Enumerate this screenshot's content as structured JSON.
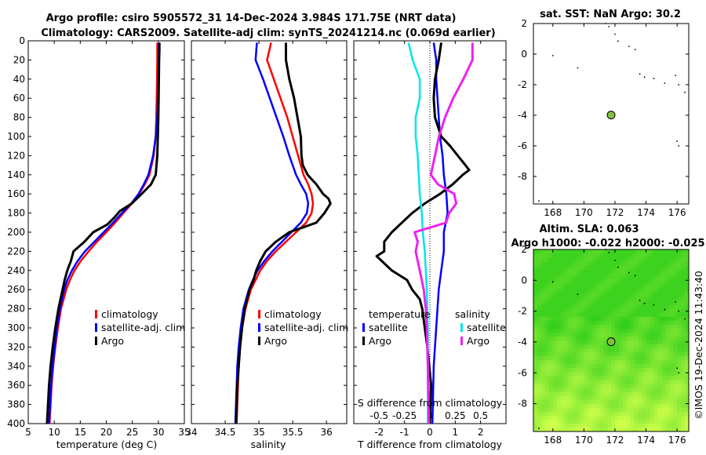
{
  "colors": {
    "clim": "#ff0000",
    "sat": "#0000ff",
    "argo": "#000000",
    "cyan": "#00e5ee",
    "magenta": "#ee22ee",
    "sla_dark": "#2ecc1a",
    "sla_light": "#c8ff4a",
    "marker": "#80c040"
  },
  "titles": {
    "main_line1": "Argo profile: csiro 5905572_31 14-Dec-2024 3.984S 171.75E (NRT data)",
    "main_line2": "Climatology: CARS2009. Satellite-adj clim: synTS_20241214.nc (0.069d earlier)",
    "sst": "sat. SST: NaN Argo: 30.2",
    "sla1": "Altim. SLA: 0.063",
    "sla2": "Argo h1000: -0.022 h2000: -0.025",
    "timestamp": "©IMOS 19-Dec-2024 11:43:40"
  },
  "labels": {
    "temperature": "temperature (deg C)",
    "salinity": "salinity",
    "t_diff": "T difference from climatology",
    "s_diff": "S difference from climatology"
  },
  "legend": {
    "clim": "climatology",
    "sat": "satellite-adj. clim",
    "argo": "Argo",
    "diff_t_head": "temperature",
    "diff_s_head": "salinity",
    "satellite": "satellite",
    "argo2": "Argo"
  },
  "chart_data": [
    {
      "type": "line",
      "name": "temperature",
      "xlim": [
        5,
        35
      ],
      "ylim": [
        400,
        0
      ],
      "x_ticks": [
        5,
        10,
        15,
        20,
        25,
        30,
        35
      ],
      "y_ticks": [
        0,
        20,
        40,
        60,
        80,
        100,
        120,
        140,
        160,
        180,
        200,
        220,
        240,
        260,
        280,
        300,
        320,
        340,
        360,
        380,
        400
      ],
      "series": [
        {
          "name": "climatology",
          "color": "#ff0000",
          "depth": [
            2,
            20,
            40,
            60,
            80,
            100,
            120,
            140,
            150,
            160,
            170,
            180,
            190,
            200,
            210,
            220,
            230,
            240,
            250,
            260,
            280,
            300,
            320,
            340,
            360,
            380,
            400
          ],
          "values": [
            29.8,
            29.8,
            29.75,
            29.7,
            29.6,
            29.5,
            29.1,
            28.3,
            27.4,
            26.3,
            24.9,
            23.3,
            21.7,
            20.0,
            18.2,
            16.6,
            15.1,
            13.9,
            13.0,
            12.3,
            11.3,
            10.7,
            10.2,
            9.8,
            9.5,
            9.3,
            9.1
          ]
        },
        {
          "name": "satellite-adj. clim",
          "color": "#0000ff",
          "depth": [
            2,
            20,
            40,
            60,
            80,
            100,
            120,
            140,
            150,
            160,
            170,
            180,
            190,
            200,
            210,
            220,
            230,
            240,
            250,
            260,
            280,
            300,
            320,
            340,
            360,
            380,
            400
          ],
          "values": [
            30.1,
            30.1,
            30.0,
            29.9,
            29.8,
            29.5,
            29.0,
            28.1,
            27.2,
            26.2,
            24.8,
            23.0,
            21.3,
            19.5,
            17.7,
            15.9,
            14.5,
            13.4,
            12.5,
            11.9,
            11.1,
            10.5,
            10.1,
            9.7,
            9.4,
            9.2,
            9.0
          ]
        },
        {
          "name": "Argo",
          "color": "#000000",
          "depth": [
            2,
            10,
            20,
            40,
            60,
            80,
            100,
            120,
            140,
            150,
            160,
            170,
            178,
            185,
            192,
            200,
            210,
            220,
            230,
            240,
            250,
            260,
            270,
            280,
            300,
            320,
            340,
            360,
            380,
            400
          ],
          "values": [
            30.2,
            30.2,
            30.15,
            30.1,
            30.05,
            30.0,
            29.9,
            29.8,
            29.5,
            28.6,
            26.8,
            24.9,
            22.6,
            21.5,
            20.2,
            17.5,
            15.8,
            13.7,
            13.2,
            12.5,
            12.0,
            11.6,
            11.2,
            10.8,
            10.2,
            9.7,
            9.3,
            9.0,
            8.8,
            8.6
          ]
        }
      ]
    },
    {
      "type": "line",
      "name": "salinity",
      "xlim": [
        34,
        36.3
      ],
      "ylim": [
        400,
        0
      ],
      "x_ticks": [
        34,
        34.5,
        35,
        35.5,
        36
      ],
      "series": [
        {
          "name": "climatology",
          "color": "#ff0000",
          "depth": [
            2,
            20,
            40,
            60,
            80,
            100,
            120,
            140,
            150,
            160,
            170,
            180,
            190,
            200,
            210,
            220,
            230,
            240,
            250,
            260,
            280,
            300,
            320,
            340,
            360,
            380,
            400
          ],
          "values": [
            35.18,
            35.12,
            35.22,
            35.32,
            35.42,
            35.5,
            35.58,
            35.66,
            35.73,
            35.78,
            35.8,
            35.78,
            35.7,
            35.55,
            35.4,
            35.25,
            35.12,
            35.02,
            34.95,
            34.88,
            34.8,
            34.75,
            34.72,
            34.7,
            34.69,
            34.68,
            34.67
          ]
        },
        {
          "name": "satellite-adj. clim",
          "color": "#0000ff",
          "depth": [
            2,
            20,
            40,
            60,
            80,
            100,
            120,
            140,
            150,
            160,
            170,
            180,
            190,
            200,
            210,
            220,
            230,
            240,
            250,
            260,
            280,
            300,
            320,
            340,
            360,
            380,
            400
          ],
          "values": [
            34.97,
            34.95,
            35.06,
            35.16,
            35.26,
            35.36,
            35.45,
            35.55,
            35.62,
            35.7,
            35.73,
            35.71,
            35.62,
            35.48,
            35.34,
            35.2,
            35.08,
            34.98,
            34.91,
            34.85,
            34.77,
            34.73,
            34.7,
            34.68,
            34.67,
            34.66,
            34.65
          ]
        },
        {
          "name": "Argo",
          "color": "#000000",
          "depth": [
            2,
            20,
            40,
            60,
            80,
            100,
            120,
            130,
            140,
            150,
            160,
            165,
            170,
            180,
            190,
            195,
            200,
            210,
            220,
            230,
            240,
            250,
            260,
            280,
            300,
            320,
            340,
            360,
            380,
            400
          ],
          "values": [
            35.4,
            35.4,
            35.45,
            35.52,
            35.57,
            35.62,
            35.63,
            35.65,
            35.72,
            35.85,
            35.95,
            36.03,
            36.06,
            35.97,
            35.85,
            35.65,
            35.45,
            35.25,
            35.1,
            35.02,
            34.96,
            34.92,
            34.86,
            34.79,
            34.75,
            34.72,
            34.7,
            34.68,
            34.67,
            34.66
          ]
        }
      ]
    },
    {
      "type": "line",
      "name": "differences",
      "xlim": [
        -3,
        3
      ],
      "ylim": [
        400,
        0
      ],
      "x_ticks": [
        -2,
        -1,
        0,
        1,
        2
      ],
      "x_ticks_s": [
        -0.5,
        -0.25,
        0,
        0.25,
        0.5
      ],
      "series": [
        {
          "name": "temperature satellite",
          "color": "#0000ff",
          "axis": "T",
          "depth": [
            2,
            20,
            40,
            60,
            80,
            100,
            120,
            140,
            160,
            180,
            200,
            220,
            240,
            260,
            280,
            300,
            340,
            400
          ],
          "values": [
            0.15,
            0.25,
            0.25,
            0.3,
            0.35,
            0.4,
            0.5,
            0.55,
            0.65,
            0.7,
            0.55,
            0.55,
            0.45,
            0.35,
            0.3,
            0.25,
            0.15,
            0.1
          ]
        },
        {
          "name": "temperature Argo",
          "color": "#000000",
          "axis": "T",
          "depth": [
            2,
            20,
            40,
            60,
            80,
            100,
            110,
            120,
            130,
            135,
            140,
            150,
            160,
            170,
            180,
            190,
            200,
            210,
            220,
            225,
            230,
            240,
            250,
            260,
            270,
            280,
            300,
            320,
            360,
            400
          ],
          "values": [
            0.45,
            0.35,
            0.2,
            0.15,
            0.2,
            0.45,
            0.8,
            1.1,
            1.4,
            1.55,
            1.3,
            0.9,
            0.4,
            -0.2,
            -0.7,
            -1.1,
            -1.5,
            -1.8,
            -1.8,
            -2.1,
            -1.9,
            -1.5,
            -0.9,
            -0.7,
            -0.4,
            -0.3,
            -0.2,
            -0.1,
            0.05,
            0.0
          ]
        },
        {
          "name": "salinity satellite",
          "color": "#00e5ee",
          "axis": "S",
          "depth": [
            2,
            20,
            40,
            60,
            80,
            100,
            120,
            140,
            160,
            180,
            200,
            220,
            240,
            260,
            300,
            400
          ],
          "values": [
            -0.21,
            -0.17,
            -0.1,
            -0.1,
            -0.14,
            -0.14,
            -0.12,
            -0.11,
            -0.1,
            -0.08,
            -0.07,
            -0.05,
            -0.04,
            -0.03,
            -0.02,
            -0.02
          ]
        },
        {
          "name": "salinity Argo",
          "color": "#ee22ee",
          "axis": "S",
          "depth": [
            2,
            20,
            40,
            60,
            80,
            100,
            120,
            140,
            150,
            160,
            170,
            180,
            190,
            200,
            210,
            220,
            240,
            260,
            280,
            300,
            340,
            400
          ],
          "values": [
            0.42,
            0.42,
            0.33,
            0.23,
            0.15,
            0.09,
            0.05,
            0.01,
            0.08,
            0.24,
            0.26,
            0.19,
            0.16,
            -0.15,
            -0.12,
            -0.14,
            -0.1,
            -0.06,
            -0.04,
            -0.03,
            -0.02,
            -0.01
          ]
        }
      ]
    },
    {
      "type": "map",
      "name": "sst",
      "xlim": [
        166.75,
        176.75
      ],
      "ylim": [
        -9.8,
        2
      ],
      "x_ticks": [
        168,
        170,
        172,
        174,
        176
      ],
      "y_ticks": [
        -8,
        -6,
        -4,
        -2,
        0,
        2
      ],
      "argo_point": [
        171.75,
        -3.984
      ]
    },
    {
      "type": "heatmap",
      "name": "sla",
      "xlim": [
        166.75,
        176.75
      ],
      "ylim": [
        -9.8,
        2
      ],
      "x_ticks": [
        168,
        170,
        172,
        174,
        176
      ],
      "y_ticks": [
        -8,
        -6,
        -4,
        -2,
        0,
        2
      ],
      "argo_point": [
        171.75,
        -3.984
      ]
    }
  ]
}
